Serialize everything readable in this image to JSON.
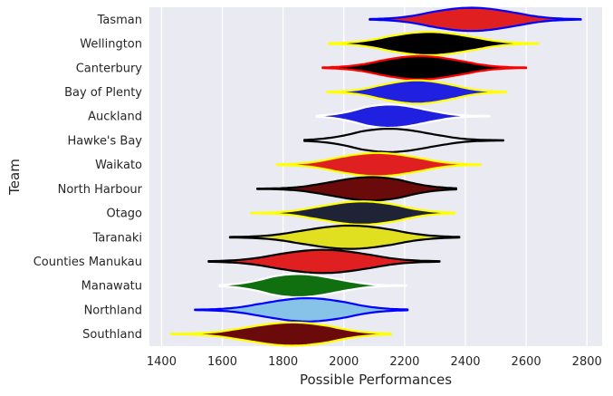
{
  "chart_data": {
    "type": "violin",
    "xlabel": "Possible Performances",
    "ylabel": "Team",
    "xlim": [
      1360,
      2850
    ],
    "xticks": [
      1400,
      1600,
      1800,
      2000,
      2200,
      2400,
      2600,
      2800
    ],
    "grid": true,
    "background": "#EAEAF2",
    "teams": [
      {
        "name": "Tasman",
        "fill": "#E02020",
        "edge": "#0000FF",
        "min": 2085,
        "max": 2780,
        "median": 2420
      },
      {
        "name": "Wellington",
        "fill": "#000000",
        "edge": "#FFFF00",
        "min": 1950,
        "max": 2640,
        "median": 2280
      },
      {
        "name": "Canterbury",
        "fill": "#000000",
        "edge": "#FF0000",
        "min": 1930,
        "max": 2600,
        "median": 2250
      },
      {
        "name": "Bay of Plenty",
        "fill": "#2020E0",
        "edge": "#FFFF00",
        "min": 1945,
        "max": 2535,
        "median": 2240
      },
      {
        "name": "Auckland",
        "fill": "#2020E0",
        "edge": "#FFFFFF",
        "min": 1910,
        "max": 2480,
        "median": 2150
      },
      {
        "name": "Hawke's Bay",
        "fill": "#EAEAF2",
        "edge": "#000000",
        "min": 1870,
        "max": 2525,
        "median": 2150
      },
      {
        "name": "Waikato",
        "fill": "#E02020",
        "edge": "#FFFF00",
        "min": 1780,
        "max": 2450,
        "median": 2110
      },
      {
        "name": "North Harbour",
        "fill": "#6B0A0A",
        "edge": "#000000",
        "min": 1715,
        "max": 2370,
        "median": 2090
      },
      {
        "name": "Otago",
        "fill": "#1E2435",
        "edge": "#FFFF00",
        "min": 1695,
        "max": 2365,
        "median": 2060
      },
      {
        "name": "Taranaki",
        "fill": "#E0E020",
        "edge": "#000000",
        "min": 1625,
        "max": 2380,
        "median": 2020
      },
      {
        "name": "Counties Manukau",
        "fill": "#E02020",
        "edge": "#000000",
        "min": 1555,
        "max": 2315,
        "median": 1930
      },
      {
        "name": "Manawatu",
        "fill": "#107010",
        "edge": "#FFFFFF",
        "min": 1590,
        "max": 2205,
        "median": 1850
      },
      {
        "name": "Northland",
        "fill": "#87C3E8",
        "edge": "#0000FF",
        "min": 1510,
        "max": 2210,
        "median": 1880
      },
      {
        "name": "Southland",
        "fill": "#6B0A0A",
        "edge": "#FFFF00",
        "min": 1430,
        "max": 2155,
        "median": 1830
      }
    ]
  }
}
